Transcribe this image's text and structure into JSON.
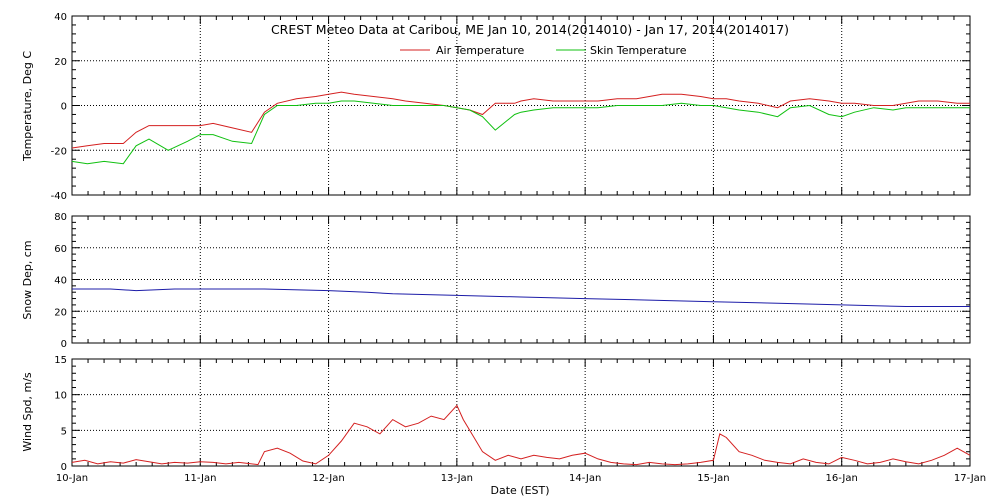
{
  "title": "CREST Meteo Data at Caribou, ME   Jan 10, 2014(2014010) - Jan 17, 2014(2014017)",
  "xlabel": "Date (EST)",
  "x_ticks": [
    "10-Jan",
    "11-Jan",
    "12-Jan",
    "13-Jan",
    "14-Jan",
    "15-Jan",
    "16-Jan",
    "17-Jan"
  ],
  "colors": {
    "air": "#d42020",
    "skin": "#10c010",
    "snow": "#1c1ca8",
    "wind": "#d42020",
    "axis": "#000000"
  },
  "chart_data": [
    {
      "type": "line",
      "ylabel": "Temperature, Deg C",
      "ylim": [
        -40,
        40
      ],
      "y_ticks": [
        "-40",
        "-20",
        "0",
        "20",
        "40"
      ],
      "grid": true,
      "legend_position": "top-center",
      "x": [
        0,
        0.12,
        0.25,
        0.4,
        0.5,
        0.6,
        0.75,
        0.9,
        1.0,
        1.1,
        1.25,
        1.4,
        1.5,
        1.6,
        1.75,
        1.9,
        2.0,
        2.1,
        2.2,
        2.35,
        2.5,
        2.6,
        2.75,
        2.9,
        3.0,
        3.1,
        3.2,
        3.3,
        3.45,
        3.5,
        3.6,
        3.75,
        3.9,
        4.0,
        4.1,
        4.25,
        4.4,
        4.5,
        4.6,
        4.75,
        4.9,
        5.0,
        5.1,
        5.2,
        5.35,
        5.5,
        5.6,
        5.75,
        5.9,
        6.0,
        6.1,
        6.25,
        6.4,
        6.5,
        6.6,
        6.75,
        6.9,
        7.0
      ],
      "series": [
        {
          "name": "Air Temperature",
          "values": [
            -19,
            -18,
            -17,
            -17,
            -12,
            -9,
            -9,
            -9,
            -9,
            -8,
            -10,
            -12,
            -3,
            1,
            3,
            4,
            5,
            6,
            5,
            4,
            3,
            2,
            1,
            0,
            -1,
            -2,
            -4,
            1,
            1,
            2,
            3,
            2,
            2,
            2,
            2,
            3,
            3,
            4,
            5,
            5,
            4,
            3,
            3,
            2,
            1,
            -1,
            2,
            3,
            2,
            1,
            1,
            0,
            0,
            1,
            2,
            2,
            1,
            1
          ]
        },
        {
          "name": "Skin Temperature",
          "values": [
            -25,
            -26,
            -25,
            -26,
            -18,
            -15,
            -20,
            -16,
            -13,
            -13,
            -16,
            -17,
            -4,
            0,
            0,
            1,
            1,
            2,
            2,
            1,
            0,
            0,
            0,
            0,
            -1,
            -2,
            -5,
            -11,
            -4,
            -3,
            -2,
            -1,
            -1,
            -1,
            -1,
            0,
            0,
            0,
            0,
            1,
            0,
            0,
            -1,
            -2,
            -3,
            -5,
            -1,
            0,
            -4,
            -5,
            -3,
            -1,
            -2,
            -1,
            -1,
            -1,
            -1,
            -1
          ]
        }
      ]
    },
    {
      "type": "line",
      "ylabel": "Snow Dep, cm",
      "ylim": [
        0,
        80
      ],
      "y_ticks": [
        "0",
        "20",
        "40",
        "60",
        "80"
      ],
      "grid": true,
      "x": [
        0,
        0.3,
        0.5,
        0.8,
        1.0,
        1.5,
        2.0,
        2.3,
        2.5,
        3.0,
        3.5,
        4.0,
        4.5,
        5.0,
        5.5,
        6.0,
        6.5,
        7.0
      ],
      "series": [
        {
          "name": "Snow Depth",
          "values": [
            34,
            34,
            33,
            34,
            34,
            34,
            33,
            32,
            31,
            30,
            29,
            28,
            27,
            26,
            25,
            24,
            23,
            23
          ]
        }
      ]
    },
    {
      "type": "line",
      "ylabel": "Wind Spd, m/s",
      "ylim": [
        0,
        15
      ],
      "y_ticks": [
        "0",
        "5",
        "10",
        "15"
      ],
      "grid": true,
      "x": [
        0,
        0.1,
        0.2,
        0.3,
        0.4,
        0.5,
        0.6,
        0.7,
        0.8,
        0.9,
        1.0,
        1.1,
        1.2,
        1.3,
        1.45,
        1.5,
        1.6,
        1.7,
        1.8,
        1.9,
        2.0,
        2.1,
        2.2,
        2.3,
        2.4,
        2.5,
        2.6,
        2.7,
        2.8,
        2.9,
        3.0,
        3.05,
        3.1,
        3.2,
        3.3,
        3.4,
        3.5,
        3.6,
        3.7,
        3.8,
        3.9,
        4.0,
        4.1,
        4.2,
        4.3,
        4.4,
        4.5,
        4.6,
        4.7,
        4.8,
        4.9,
        5.0,
        5.05,
        5.1,
        5.2,
        5.3,
        5.4,
        5.5,
        5.6,
        5.7,
        5.8,
        5.9,
        6.0,
        6.1,
        6.2,
        6.3,
        6.4,
        6.5,
        6.6,
        6.7,
        6.8,
        6.9,
        7.0
      ],
      "series": [
        {
          "name": "Wind Speed",
          "values": [
            0.5,
            0.8,
            0.3,
            0.6,
            0.4,
            0.9,
            0.6,
            0.3,
            0.5,
            0.4,
            0.6,
            0.5,
            0.3,
            0.5,
            0.2,
            2.0,
            2.5,
            1.8,
            0.7,
            0.3,
            1.5,
            3.5,
            6.0,
            5.5,
            4.5,
            6.5,
            5.5,
            6.0,
            7.0,
            6.5,
            8.5,
            6.5,
            5.0,
            2.0,
            0.8,
            1.5,
            1.0,
            1.5,
            1.2,
            1.0,
            1.5,
            1.8,
            1.0,
            0.5,
            0.3,
            0.2,
            0.5,
            0.3,
            0.2,
            0.3,
            0.5,
            0.8,
            4.5,
            4.0,
            2.0,
            1.5,
            0.8,
            0.5,
            0.3,
            1.0,
            0.5,
            0.3,
            1.2,
            0.8,
            0.3,
            0.5,
            1.0,
            0.6,
            0.3,
            0.8,
            1.5,
            2.5,
            1.5
          ]
        }
      ]
    }
  ]
}
